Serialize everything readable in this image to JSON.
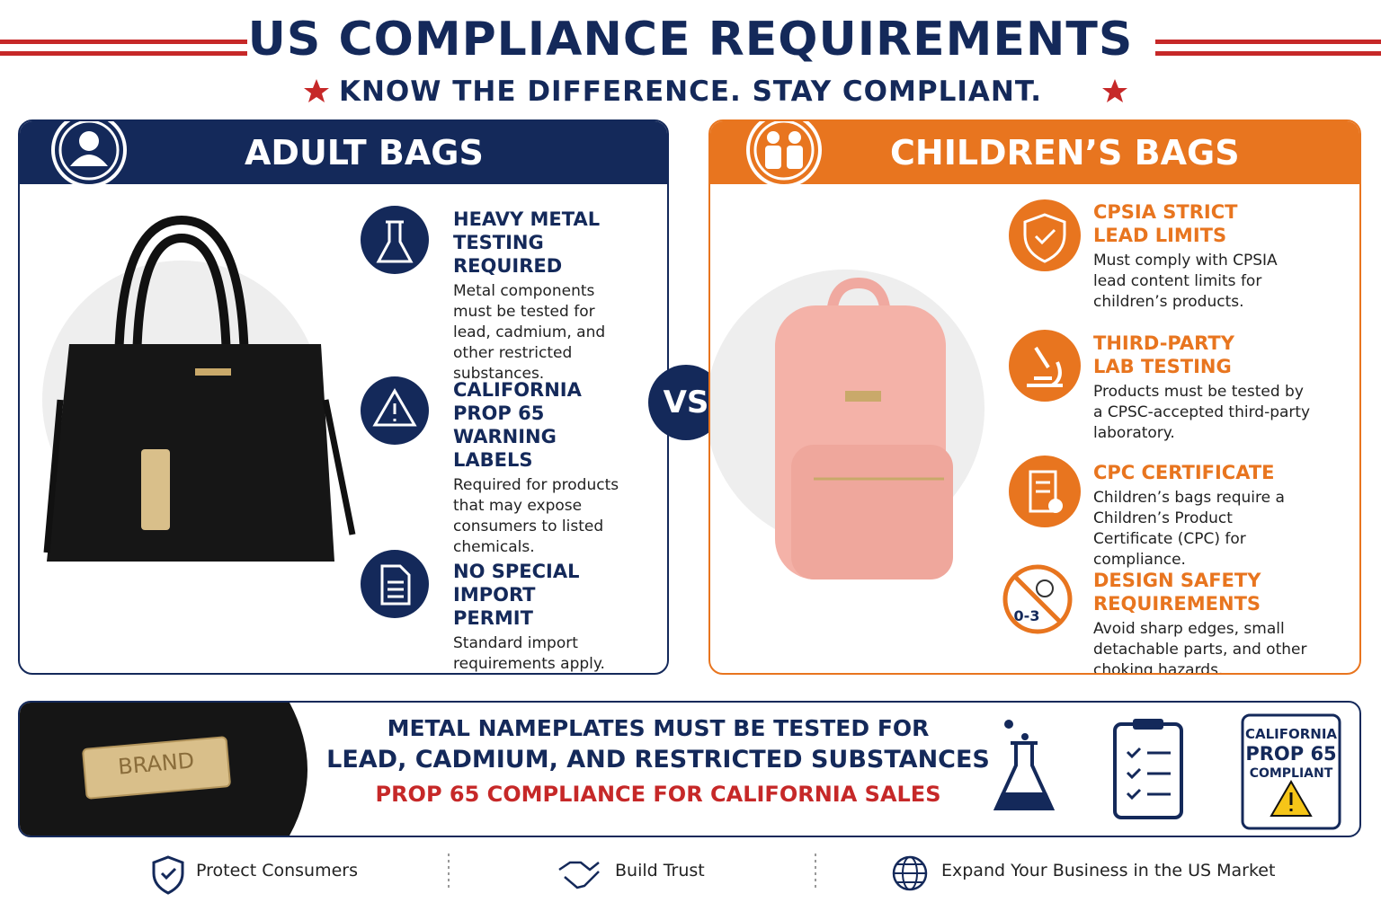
{
  "header": {
    "title": "US COMPLIANCE REQUIREMENTS",
    "subtitle": "KNOW THE DIFFERENCE. STAY COMPLIANT."
  },
  "adult": {
    "title": "ADULT BAGS",
    "items": [
      {
        "title": "HEAVY METAL TESTING REQUIRED",
        "body": "Metal components must be tested for lead, cadmium, and other restricted substances."
      },
      {
        "title": "CALIFORNIA PROP 65 WARNING LABELS",
        "body": "Required for products that may expose consumers to listed chemicals."
      },
      {
        "title": "NO SPECIAL IMPORT PERMIT",
        "body": "Standard import requirements apply."
      }
    ]
  },
  "vs": "VS",
  "children": {
    "title": "CHILDREN’S BAGS",
    "items": [
      {
        "title": "CPSIA STRICT LEAD LIMITS",
        "body": "Must comply with CPSIA lead content limits for children’s products."
      },
      {
        "title": "THIRD-PARTY LAB TESTING",
        "body": "Products must be tested by a CPSC-accepted third-party laboratory."
      },
      {
        "title": "CPC CERTIFICATE",
        "body": "Children’s bags require a Children’s Product Certificate (CPC) for compliance."
      },
      {
        "title": "DESIGN SAFETY REQUIREMENTS",
        "body": "Avoid sharp edges, small detachable parts, and other choking hazards.",
        "icon_label": "0-3"
      }
    ]
  },
  "banner": {
    "brand": "BRAND",
    "line1": "METAL NAMEPLATES MUST BE TESTED FOR",
    "line2": "LEAD, CADMIUM, AND RESTRICTED SUBSTANCES",
    "line3": "PROP 65 COMPLIANCE FOR CALIFORNIA SALES",
    "badge": [
      "CALIFORNIA",
      "PROP 65",
      "COMPLIANT"
    ]
  },
  "footer": [
    "Protect Consumers",
    "Build Trust",
    "Expand Your Business in the US Market"
  ]
}
